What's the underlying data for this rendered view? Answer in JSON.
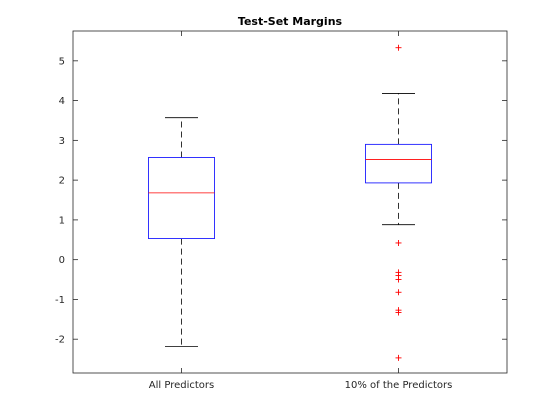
{
  "chart_data": {
    "type": "box",
    "title": "Test-Set Margins",
    "xlabel": "",
    "ylabel": "",
    "categories": [
      "All Predictors",
      "10% of the Predictors"
    ],
    "ylim": [
      -2.85,
      5.75
    ],
    "yticks": [
      -2,
      -1,
      0,
      1,
      2,
      3,
      4,
      5
    ],
    "grid": false,
    "boxes": [
      {
        "name": "All Predictors",
        "whisker_low": -2.18,
        "q1": 0.53,
        "median": 1.68,
        "q3": 2.57,
        "whisker_high": 3.57,
        "outliers": []
      },
      {
        "name": "10% of the Predictors",
        "whisker_low": 0.88,
        "q1": 1.93,
        "median": 2.52,
        "q3": 2.9,
        "whisker_high": 4.18,
        "outliers": [
          5.33,
          0.42,
          -0.32,
          -0.4,
          -0.5,
          -0.82,
          -1.27,
          -1.33,
          -2.47
        ]
      }
    ],
    "colors": {
      "box": "#0000ff",
      "median": "#ff0000",
      "whisker": "#000000",
      "outlier": "#ff0000",
      "axes": "#262626"
    }
  }
}
